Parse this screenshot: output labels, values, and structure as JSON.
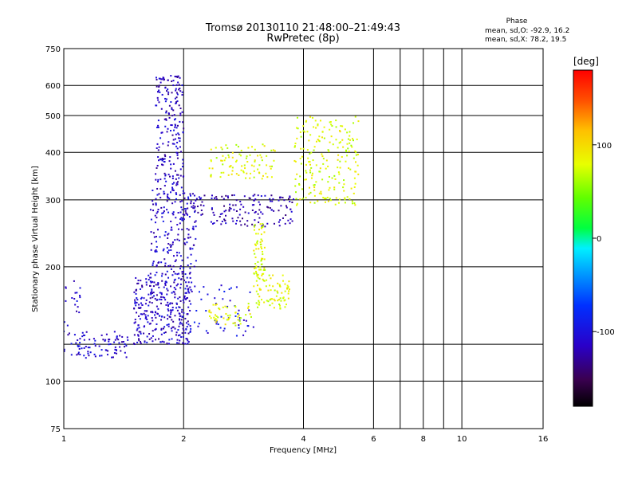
{
  "chart_data": {
    "type": "scatter",
    "title": "Tromsø 20130110 21:48:00–21:49:43",
    "subtitle": "RwPretec (8p)",
    "xlabel": "Frequency [MHz]",
    "ylabel": "Stationary phase Virtual Height [km]",
    "x_scale": "log",
    "y_scale": "log",
    "xlim": [
      1,
      16
    ],
    "ylim": [
      75,
      750
    ],
    "x_ticks": [
      1,
      2,
      4,
      6,
      8,
      10,
      16
    ],
    "x_tick_labels": [
      "1",
      "2",
      "4",
      "6",
      "8",
      "10",
      "16"
    ],
    "x_minor_ticks": [
      7,
      9
    ],
    "y_ticks": [
      75,
      100,
      200,
      300,
      400,
      500,
      600,
      750
    ],
    "y_tick_labels": [
      "75",
      "100",
      "200",
      "300",
      "400",
      "500",
      "600",
      "750"
    ],
    "y_minor_ticks": [
      125
    ],
    "grid": true,
    "colorbar": {
      "label": "[deg]",
      "range": [
        -180,
        180
      ],
      "ticks": [
        100,
        0,
        -100
      ],
      "tick_labels": [
        "100",
        "0",
        "-100"
      ],
      "position": "right"
    },
    "stats": {
      "heading": "Phase",
      "line1": "mean, sd,O: -92.9, 16.2",
      "line2": "mean, sd,X:  78.2, 19.5"
    },
    "point_groups": [
      {
        "name": "O trace 1.0-1.5 MHz",
        "x_range": [
          1.0,
          1.45
        ],
        "y_range": [
          115,
          135
        ],
        "phase": -110,
        "count": 90
      },
      {
        "name": "O trace low band",
        "x_range": [
          1.0,
          1.1
        ],
        "y_range": [
          130,
          190
        ],
        "phase": -110,
        "count": 20
      },
      {
        "name": "O trace 1.5-2.0 MHz",
        "x_range": [
          1.5,
          2.1
        ],
        "y_range": [
          125,
          190
        ],
        "phase": -112,
        "count": 320
      },
      {
        "name": "O trace 1.6-2.1 MHz middle",
        "x_range": [
          1.65,
          2.15
        ],
        "y_range": [
          190,
          320
        ],
        "phase": -110,
        "count": 200
      },
      {
        "name": "O cusp 1.7-2.0 MHz",
        "x_range": [
          1.7,
          2.0
        ],
        "y_range": [
          320,
          640
        ],
        "phase": -115,
        "count": 200
      },
      {
        "name": "O trace F2 2.0-3.8 MHz",
        "x_range": [
          2.0,
          3.8
        ],
        "y_range": [
          255,
          310
        ],
        "phase": -120,
        "count": 160
      },
      {
        "name": "O trace 2.0-3.0 MHz low",
        "x_range": [
          2.0,
          3.0
        ],
        "y_range": [
          130,
          180
        ],
        "phase": -100,
        "count": 60
      },
      {
        "name": "X trace 2.3-3.0 MHz",
        "x_range": [
          2.3,
          3.0
        ],
        "y_range": [
          140,
          160
        ],
        "phase": 80,
        "count": 50
      },
      {
        "name": "X trace 3.0-3.7 MHz",
        "x_range": [
          3.0,
          3.7
        ],
        "y_range": [
          155,
          190
        ],
        "phase": 80,
        "count": 80
      },
      {
        "name": "X trace 2.3-3.4 MHz high",
        "x_range": [
          2.3,
          3.4
        ],
        "y_range": [
          340,
          420
        ],
        "phase": 80,
        "count": 90
      },
      {
        "name": "X trace 3.0-3.2 MHz vertical",
        "x_range": [
          3.0,
          3.2
        ],
        "y_range": [
          190,
          260
        ],
        "phase": 80,
        "count": 60
      },
      {
        "name": "X trace 3.8-5.5 MHz",
        "x_range": [
          3.8,
          5.5
        ],
        "y_range": [
          290,
          500
        ],
        "phase": 78,
        "count": 210
      }
    ]
  }
}
